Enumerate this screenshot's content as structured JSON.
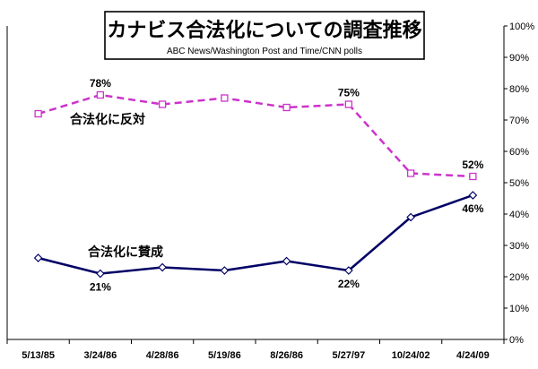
{
  "chart_data": {
    "type": "line",
    "title": "カナビス合法化についての調査推移",
    "subtitle": "ABC News/Washington Post and Time/CNN polls",
    "categories": [
      "5/13/85",
      "3/24/86",
      "4/28/86",
      "5/19/86",
      "8/26/86",
      "5/27/97",
      "10/24/02",
      "4/24/09"
    ],
    "ylim": [
      0,
      100
    ],
    "yticks": [
      "0%",
      "10%",
      "20%",
      "30%",
      "40%",
      "50%",
      "60%",
      "70%",
      "80%",
      "90%",
      "100%"
    ],
    "series": [
      {
        "name": "合法化に反対",
        "values": [
          72,
          78,
          75,
          77,
          74,
          75,
          53,
          52
        ],
        "color": "#CC33CC",
        "style": "dashed",
        "marker": "square"
      },
      {
        "name": "合法化に賛成",
        "values": [
          26,
          21,
          23,
          22,
          25,
          22,
          39,
          46
        ],
        "color": "#000066",
        "style": "solid",
        "marker": "diamond"
      }
    ],
    "data_labels": [
      {
        "series": 0,
        "index": 1,
        "text": "78%"
      },
      {
        "series": 0,
        "index": 5,
        "text": "75%"
      },
      {
        "series": 0,
        "index": 7,
        "text": "52%"
      },
      {
        "series": 1,
        "index": 1,
        "text": "21%"
      },
      {
        "series": 1,
        "index": 5,
        "text": "22%"
      },
      {
        "series": 1,
        "index": 7,
        "text": "46%"
      }
    ],
    "legend": "inline labels"
  }
}
